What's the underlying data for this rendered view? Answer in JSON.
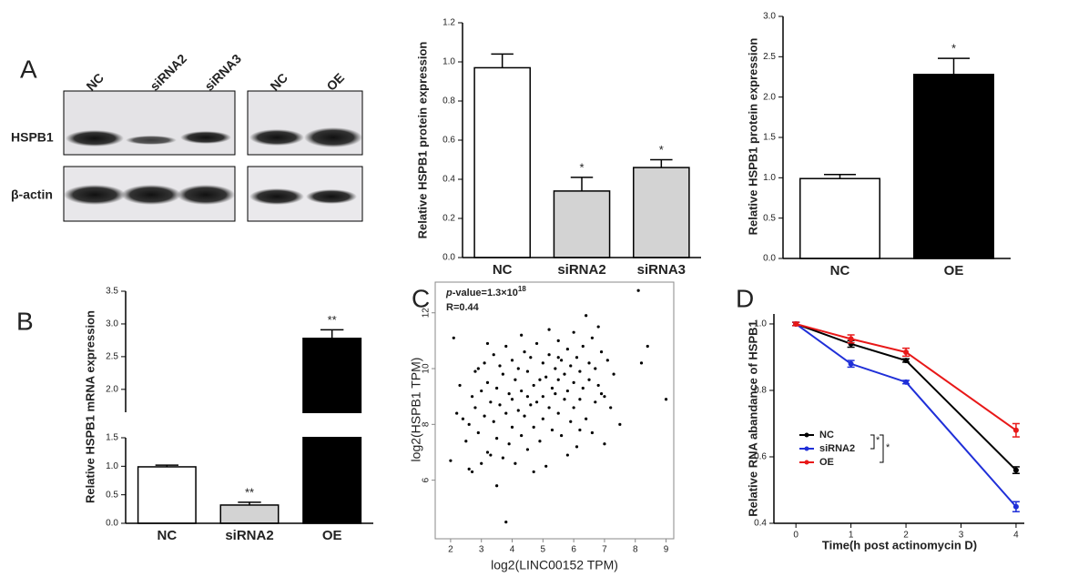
{
  "panel_labels": [
    "A",
    "B",
    "C",
    "D"
  ],
  "blot": {
    "lanes_left": [
      "NC",
      "siRNA2",
      "siRNA3"
    ],
    "lanes_right": [
      "NC",
      "OE"
    ],
    "rows": [
      "HSPB1",
      "β-actin"
    ]
  },
  "chart_data": [
    {
      "type": "bar",
      "ylabel": "Relative HSPB1 protein expression",
      "categories": [
        "NC",
        "siRNA2",
        "siRNA3"
      ],
      "values": [
        0.97,
        0.34,
        0.46
      ],
      "errors": [
        0.07,
        0.07,
        0.04
      ],
      "annotations": [
        null,
        "*",
        "*"
      ],
      "colors": [
        "#ffffff",
        "#d3d3d3",
        "#d3d3d3"
      ],
      "ylim": [
        0,
        1.2
      ],
      "yticks": [
        {
          "value": 0,
          "label": "0.0"
        },
        0.2,
        0.4,
        0.6,
        0.8,
        {
          "value": 1,
          "label": "1.0"
        },
        1.2
      ]
    },
    {
      "type": "bar",
      "ylabel": "Relative HSPB1 protein expression",
      "categories": [
        "NC",
        "OE"
      ],
      "values": [
        0.99,
        2.28
      ],
      "errors": [
        0.05,
        0.2
      ],
      "annotations": [
        null,
        "*"
      ],
      "colors": [
        "#ffffff",
        "#000000"
      ],
      "ylim": [
        0,
        3
      ],
      "yticks": [
        {
          "value": 0,
          "label": "0.0"
        },
        0.5,
        {
          "value": 1,
          "label": "1.0"
        },
        1.5,
        {
          "value": 2,
          "label": "2.0"
        },
        2.5,
        {
          "value": 3,
          "label": "3.0"
        }
      ]
    },
    {
      "type": "bar",
      "ylabel": "Relative HSPB1 mRNA expression",
      "categories": [
        "NC",
        "siRNA2",
        "OE"
      ],
      "values": [
        0.99,
        0.32,
        2.78
      ],
      "errors": [
        0.03,
        0.05,
        0.13
      ],
      "annotations": [
        null,
        "**",
        "**"
      ],
      "colors": [
        "#ffffff",
        "#d3d3d3",
        "#000000"
      ],
      "ylim": [
        0,
        3.5
      ],
      "ybreak": [
        1.5,
        1.65
      ],
      "yticks": [
        {
          "value": 0,
          "label": "0.0"
        },
        0.5,
        {
          "value": 1,
          "label": "1.0"
        },
        1.5,
        {
          "value": 2,
          "label": "2.0"
        },
        2.5,
        {
          "value": 3,
          "label": "3.0"
        },
        3.5
      ]
    },
    {
      "type": "scatter",
      "xlabel": "log2(LINC00152 TPM)",
      "ylabel": "log2(HSPB1 TPM)",
      "annotations": [
        "p",
        "-value=1.3×10",
        "18",
        "R=0.44"
      ],
      "color": "#000000",
      "x": [
        2.1,
        2.0,
        2.2,
        2.3,
        2.4,
        2.5,
        2.6,
        2.6,
        2.7,
        2.7,
        2.8,
        2.8,
        2.9,
        2.9,
        3.0,
        3.0,
        3.1,
        3.1,
        3.2,
        3.2,
        3.3,
        3.3,
        3.4,
        3.4,
        3.5,
        3.5,
        3.6,
        3.6,
        3.7,
        3.7,
        3.8,
        3.8,
        3.8,
        3.9,
        3.9,
        4.0,
        4.0,
        4.0,
        4.1,
        4.1,
        4.2,
        4.2,
        4.3,
        4.3,
        4.4,
        4.4,
        4.5,
        4.5,
        4.5,
        4.6,
        4.6,
        4.7,
        4.7,
        4.8,
        4.8,
        4.9,
        4.9,
        5.0,
        5.0,
        5.0,
        5.1,
        5.1,
        5.2,
        5.2,
        5.3,
        5.3,
        5.4,
        5.4,
        5.5,
        5.5,
        5.5,
        5.6,
        5.6,
        5.7,
        5.7,
        5.8,
        5.8,
        5.9,
        5.9,
        6.0,
        6.0,
        6.0,
        6.1,
        6.1,
        6.2,
        6.2,
        6.3,
        6.3,
        6.4,
        6.4,
        6.5,
        6.5,
        6.6,
        6.6,
        6.7,
        6.7,
        6.8,
        6.8,
        6.9,
        7.0,
        7.0,
        7.1,
        7.2,
        7.3,
        7.5,
        8.1,
        8.2,
        8.4,
        9.0,
        5.2,
        4.3,
        3.2,
        5.8,
        6.2,
        4.7,
        3.5,
        6.9,
        5.5
      ],
      "values": [
        11.1,
        6.7,
        8.4,
        9.4,
        8.2,
        7.4,
        6.4,
        8.0,
        9.0,
        6.3,
        9.9,
        8.6,
        7.7,
        10.0,
        6.6,
        9.2,
        8.3,
        10.2,
        7.0,
        9.5,
        8.8,
        6.9,
        10.5,
        8.1,
        9.3,
        7.5,
        10.1,
        8.7,
        6.8,
        9.8,
        4.5,
        8.4,
        10.8,
        9.1,
        7.3,
        8.9,
        10.3,
        7.9,
        9.6,
        6.6,
        8.5,
        10.0,
        9.2,
        7.6,
        10.6,
        8.3,
        9.0,
        7.1,
        9.9,
        8.7,
        10.4,
        9.4,
        7.9,
        10.9,
        8.8,
        9.6,
        7.4,
        10.2,
        9.0,
        8.2,
        9.7,
        6.5,
        10.5,
        8.6,
        9.3,
        7.8,
        10.0,
        9.1,
        11.0,
        8.4,
        9.6,
        10.3,
        7.6,
        9.8,
        8.9,
        10.7,
        9.2,
        8.1,
        10.1,
        9.5,
        11.3,
        8.6,
        10.4,
        7.2,
        9.9,
        8.9,
        10.8,
        9.3,
        11.9,
        8.2,
        10.2,
        9.6,
        7.7,
        11.1,
        10.0,
        8.8,
        9.4,
        11.5,
        10.6,
        9.0,
        7.3,
        10.3,
        8.6,
        9.8,
        8.0,
        12.8,
        10.2,
        10.8,
        8.9,
        11.4,
        11.2,
        10.9,
        6.9,
        7.8,
        6.3,
        5.8,
        9.1,
        10.4
      ],
      "xlim": [
        1.5,
        9.25
      ],
      "ylim": [
        3.9,
        13.1
      ],
      "xticks": [
        2,
        3,
        4,
        5,
        6,
        7,
        8,
        9
      ],
      "yticks": [
        6,
        8,
        10,
        12
      ]
    },
    {
      "type": "line",
      "xlabel": "Time(h post actinomycin D)",
      "ylabel": "Relative RNA abandance of HSPB1",
      "x": [
        0,
        1,
        2,
        4
      ],
      "series": [
        {
          "name": "NC",
          "color": "#000000",
          "values": [
            1.0,
            0.94,
            0.89,
            0.56
          ],
          "errors": [
            0.005,
            0.01,
            0.005,
            0.01
          ]
        },
        {
          "name": "siRNA2",
          "color": "#1f2fd8",
          "values": [
            1.0,
            0.88,
            0.825,
            0.45
          ],
          "errors": [
            0.005,
            0.01,
            0.005,
            0.015
          ]
        },
        {
          "name": "OE",
          "color": "#e81818",
          "values": [
            1.0,
            0.955,
            0.915,
            0.68
          ],
          "errors": [
            0.005,
            0.012,
            0.012,
            0.02
          ]
        }
      ],
      "legend": "center-left",
      "legend_annotations": [
        "*",
        "*"
      ],
      "xlim": [
        -0.4,
        4.15
      ],
      "ylim": [
        0.4,
        1.03
      ],
      "xticks": [
        0,
        1,
        2,
        3,
        4
      ],
      "yticks": [
        0.4,
        0.6,
        0.8,
        {
          "value": 1,
          "label": "1.0"
        }
      ]
    }
  ]
}
